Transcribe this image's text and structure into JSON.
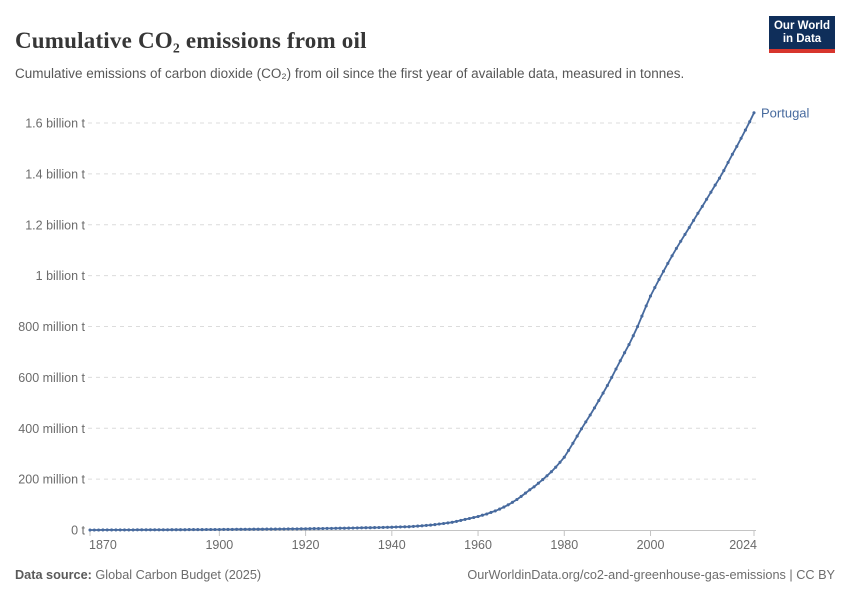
{
  "header": {
    "title": "Cumulative CO₂ emissions from oil",
    "subtitle": "Cumulative emissions of carbon dioxide (CO₂) from oil since the first year of available data, measured in tonnes."
  },
  "logo": {
    "line1": "Our World",
    "line2": "in Data",
    "bg_color": "#0f2e5a",
    "accent_color": "#d7352d"
  },
  "footer": {
    "source_label": "Data source:",
    "source_value": "Global Carbon Budget (2025)",
    "right_text": "OurWorldinData.org/co2-and-greenhouse-gas-emissions | CC BY"
  },
  "chart_data": {
    "type": "line",
    "title": "Cumulative CO₂ emissions from oil",
    "unit": "tonnes",
    "grid": "dashed",
    "legend_position": "end-of-line-label",
    "colors": {
      "series_blue": "#476a9e",
      "gridline": "#dcdcdc",
      "axis_line": "#c4c4c4",
      "tick_label": "#6b6b6b"
    },
    "x": {
      "label": "",
      "min": 1870,
      "max": 2024,
      "ticks": [
        1870,
        1900,
        1920,
        1940,
        1960,
        1980,
        2000,
        2024
      ],
      "tick_labels": [
        "1870",
        "1900",
        "1920",
        "1940",
        "1960",
        "1980",
        "2000",
        "2024"
      ]
    },
    "y": {
      "label": "",
      "min_million_t": 0,
      "max_million_t": 1600,
      "tick_step_million_t": 200,
      "tick_labels": [
        "0 t",
        "200 million t",
        "400 million t",
        "600 million t",
        "800 million t",
        "1 billion t",
        "1.2 billion t",
        "1.4 billion t",
        "1.6 billion t"
      ]
    },
    "series": [
      {
        "name": "Portugal",
        "color": "#476a9e",
        "marker": "circle",
        "years": [
          1870,
          1871,
          1872,
          1873,
          1874,
          1875,
          1876,
          1877,
          1878,
          1879,
          1880,
          1881,
          1882,
          1883,
          1884,
          1885,
          1886,
          1887,
          1888,
          1889,
          1890,
          1891,
          1892,
          1893,
          1894,
          1895,
          1896,
          1897,
          1898,
          1899,
          1900,
          1901,
          1902,
          1903,
          1904,
          1905,
          1906,
          1907,
          1908,
          1909,
          1910,
          1911,
          1912,
          1913,
          1914,
          1915,
          1916,
          1917,
          1918,
          1919,
          1920,
          1921,
          1922,
          1923,
          1924,
          1925,
          1926,
          1927,
          1928,
          1929,
          1930,
          1931,
          1932,
          1933,
          1934,
          1935,
          1936,
          1937,
          1938,
          1939,
          1940,
          1941,
          1942,
          1943,
          1944,
          1945,
          1946,
          1947,
          1948,
          1949,
          1950,
          1951,
          1952,
          1953,
          1954,
          1955,
          1956,
          1957,
          1958,
          1959,
          1960,
          1961,
          1962,
          1963,
          1964,
          1965,
          1966,
          1967,
          1968,
          1969,
          1970,
          1971,
          1972,
          1973,
          1974,
          1975,
          1976,
          1977,
          1978,
          1979,
          1980,
          1981,
          1982,
          1983,
          1984,
          1985,
          1986,
          1987,
          1988,
          1989,
          1990,
          1991,
          1992,
          1993,
          1994,
          1995,
          1996,
          1997,
          1998,
          1999,
          2000,
          2001,
          2002,
          2003,
          2004,
          2005,
          2006,
          2007,
          2008,
          2009,
          2010,
          2011,
          2012,
          2013,
          2014,
          2015,
          2016,
          2017,
          2018,
          2019,
          2020,
          2021,
          2022,
          2023,
          2024
        ],
        "values_million_t": [
          0.05,
          0.1,
          0.15,
          0.2,
          0.25,
          0.3,
          0.35,
          0.4,
          0.45,
          0.5,
          0.55,
          0.6,
          0.65,
          0.7,
          0.75,
          0.8,
          0.85,
          0.9,
          0.95,
          1.0,
          1.1,
          1.2,
          1.3,
          1.4,
          1.5,
          1.6,
          1.7,
          1.8,
          1.9,
          2.0,
          2.1,
          2.2,
          2.3,
          2.4,
          2.6,
          2.7,
          2.8,
          2.9,
          3.0,
          3.1,
          3.3,
          3.4,
          3.6,
          3.7,
          3.9,
          4.0,
          4.2,
          4.3,
          4.5,
          4.6,
          4.9,
          5.1,
          5.4,
          5.6,
          5.9,
          6.1,
          6.4,
          6.6,
          6.9,
          7.1,
          7.5,
          7.8,
          8.2,
          8.5,
          8.9,
          9.2,
          9.6,
          9.9,
          10.3,
          10.6,
          11.1,
          11.6,
          12.1,
          12.6,
          13.1,
          14.3,
          15.5,
          16.7,
          17.9,
          19.1,
          21.3,
          23.5,
          25.7,
          27.9,
          30.1,
          33.9,
          37.7,
          41.5,
          45.3,
          49.1,
          53,
          58,
          63,
          69,
          75,
          82,
          90,
          99,
          109,
          120,
          132,
          145,
          158,
          170,
          184,
          198,
          213,
          229,
          247,
          266,
          286,
          313,
          341,
          369,
          398,
          425,
          452,
          480,
          509,
          538,
          568,
          600,
          633,
          665,
          697,
          729,
          764,
          800,
          841,
          881,
          920,
          953,
          985,
          1017,
          1048,
          1078,
          1107,
          1135,
          1162,
          1189,
          1217,
          1245,
          1272,
          1300,
          1328,
          1356,
          1383,
          1413,
          1445,
          1477,
          1508,
          1540,
          1572,
          1605,
          1640
        ]
      }
    ]
  }
}
